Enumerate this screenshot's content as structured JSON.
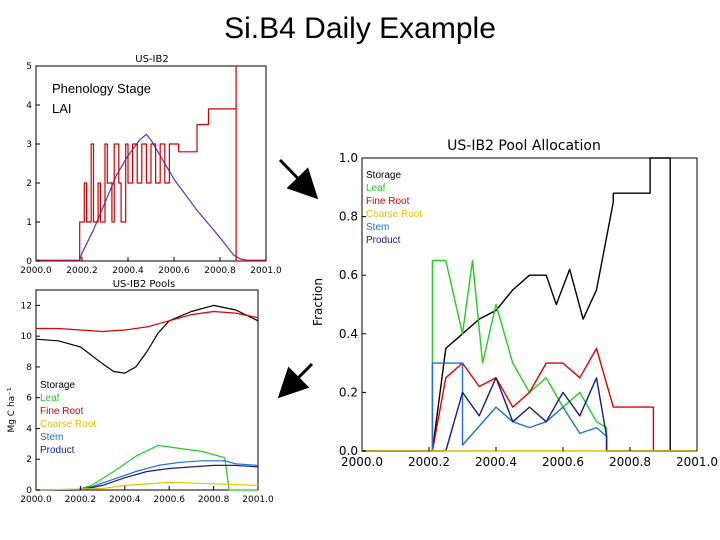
{
  "title": "Si.B4 Daily Example",
  "colors": {
    "storage": "#000000",
    "leaf": "#22cc22",
    "fine_root": "#dd0000",
    "coarse_root": "#e6c200",
    "stem": "#1f6fd1",
    "product": "#1a1a8c",
    "lai": "#5533cc",
    "phenology": "#cc0000",
    "arrow": "#000000"
  },
  "chart_data": [
    {
      "id": "lai",
      "type": "line",
      "title": "US-IB2",
      "xlim": [
        2000.0,
        2001.0
      ],
      "ylim": [
        0,
        5
      ],
      "x_ticks": [
        "2000.0",
        "2000.2",
        "2000.4",
        "2000.6",
        "2000.8",
        "2001.0"
      ],
      "y_ticks": [
        "0",
        "1",
        "2",
        "3",
        "4",
        "5"
      ],
      "legend": [
        "Phenology Stage",
        "LAI"
      ],
      "series": [
        {
          "name": "LAI",
          "color_key": "lai",
          "x": [
            2000.0,
            2000.19,
            2000.2,
            2000.25,
            2000.3,
            2000.35,
            2000.4,
            2000.45,
            2000.48,
            2000.5,
            2000.53,
            2000.6,
            2000.7,
            2000.8,
            2000.86,
            2000.89,
            2000.92,
            2001.0
          ],
          "y": [
            0.02,
            0.02,
            0.2,
            0.8,
            1.5,
            2.2,
            2.7,
            3.1,
            3.25,
            3.1,
            2.8,
            2.1,
            1.3,
            0.6,
            0.15,
            0.05,
            0.02,
            0.02
          ]
        },
        {
          "name": "Phenology Stage",
          "color_key": "phenology",
          "x": [
            2000.0,
            2000.19,
            2000.19,
            2000.21,
            2000.21,
            2000.22,
            2000.22,
            2000.24,
            2000.24,
            2000.25,
            2000.25,
            2000.27,
            2000.27,
            2000.28,
            2000.28,
            2000.3,
            2000.3,
            2000.31,
            2000.31,
            2000.33,
            2000.33,
            2000.34,
            2000.34,
            2000.36,
            2000.36,
            2000.37,
            2000.37,
            2000.39,
            2000.39,
            2000.4,
            2000.4,
            2000.42,
            2000.42,
            2000.44,
            2000.44,
            2000.46,
            2000.46,
            2000.48,
            2000.48,
            2000.5,
            2000.5,
            2000.52,
            2000.52,
            2000.54,
            2000.54,
            2000.56,
            2000.56,
            2000.58,
            2000.58,
            2000.62,
            2000.62,
            2000.7,
            2000.7,
            2000.75,
            2000.75,
            2000.87,
            2000.87,
            2000.87,
            2000.87,
            2001.0
          ],
          "y": [
            0,
            0,
            1,
            1,
            2,
            2,
            1,
            1,
            3,
            3,
            1,
            1,
            2,
            2,
            1,
            1,
            3,
            3,
            2,
            2,
            1,
            1,
            3,
            3,
            2,
            2,
            1,
            1,
            3,
            3,
            2,
            2,
            3,
            3,
            2,
            2,
            3,
            3,
            2,
            2,
            3,
            3,
            2,
            2,
            3,
            3,
            2,
            2,
            3,
            3,
            2.8,
            2.8,
            3.5,
            3.5,
            3.9,
            3.9,
            5,
            5,
            0,
            0
          ]
        }
      ]
    },
    {
      "id": "pools",
      "type": "line",
      "title": "US-IB2 Pools",
      "ylabel": "Mg C ha⁻¹",
      "xlim": [
        2000.0,
        2001.0
      ],
      "ylim": [
        0,
        13
      ],
      "x_ticks": [
        "2000.0",
        "2000.2",
        "2000.4",
        "2000.6",
        "2000.8",
        "2001.0"
      ],
      "y_ticks": [
        "0",
        "2",
        "4",
        "6",
        "8",
        "10",
        "12"
      ],
      "legend": [
        "Storage",
        "Leaf",
        "Fine Root",
        "Coarse Root",
        "Stem",
        "Product"
      ],
      "series": [
        {
          "name": "Storage",
          "color_key": "storage",
          "x": [
            2000.0,
            2000.1,
            2000.2,
            2000.3,
            2000.35,
            2000.4,
            2000.45,
            2000.5,
            2000.55,
            2000.6,
            2000.7,
            2000.8,
            2000.9,
            2001.0
          ],
          "y": [
            9.8,
            9.7,
            9.3,
            8.2,
            7.7,
            7.6,
            8.0,
            9.0,
            10.2,
            11.0,
            11.6,
            12.0,
            11.7,
            11.0
          ]
        },
        {
          "name": "Fine Root",
          "color_key": "fine_root",
          "x": [
            2000.0,
            2000.1,
            2000.2,
            2000.3,
            2000.4,
            2000.5,
            2000.6,
            2000.7,
            2000.8,
            2000.9,
            2001.0
          ],
          "y": [
            10.5,
            10.5,
            10.4,
            10.3,
            10.4,
            10.6,
            11.0,
            11.4,
            11.6,
            11.5,
            11.2
          ]
        },
        {
          "name": "Leaf",
          "color_key": "leaf",
          "x": [
            2000.0,
            2000.18,
            2000.25,
            2000.35,
            2000.45,
            2000.55,
            2000.65,
            2000.75,
            2000.85,
            2000.87,
            2001.0
          ],
          "y": [
            0,
            0,
            0.3,
            1.2,
            2.2,
            2.9,
            2.7,
            2.5,
            2.1,
            0,
            0
          ]
        },
        {
          "name": "Stem",
          "color_key": "stem",
          "x": [
            2000.0,
            2000.18,
            2000.25,
            2000.35,
            2000.45,
            2000.55,
            2000.65,
            2000.75,
            2000.85,
            2000.9,
            2001.0
          ],
          "y": [
            0,
            0,
            0.2,
            0.7,
            1.2,
            1.6,
            1.8,
            1.9,
            1.9,
            1.7,
            1.6
          ]
        },
        {
          "name": "Product",
          "color_key": "product",
          "x": [
            2000.0,
            2000.2,
            2000.3,
            2000.4,
            2000.5,
            2000.6,
            2000.7,
            2000.8,
            2000.9,
            2001.0
          ],
          "y": [
            0,
            0,
            0.3,
            0.8,
            1.2,
            1.4,
            1.5,
            1.6,
            1.6,
            1.5
          ]
        },
        {
          "name": "Coarse Root",
          "color_key": "coarse_root",
          "x": [
            2000.0,
            2000.3,
            2000.4,
            2000.6,
            2000.8,
            2001.0
          ],
          "y": [
            0,
            0.1,
            0.3,
            0.5,
            0.4,
            0.3
          ]
        }
      ]
    },
    {
      "id": "allocation",
      "type": "line",
      "title": "US-IB2 Pool Allocation",
      "ylabel": "Fraction",
      "xlim": [
        2000.0,
        2001.0
      ],
      "ylim": [
        0.0,
        1.0
      ],
      "x_ticks": [
        "2000.0",
        "2000.2",
        "2000.4",
        "2000.6",
        "2000.8",
        "2001.0"
      ],
      "y_ticks": [
        "0.0",
        "0.2",
        "0.4",
        "0.6",
        "0.8",
        "1.0"
      ],
      "legend": [
        "Storage",
        "Leaf",
        "Fine Root",
        "Coarse Root",
        "Stem",
        "Product"
      ],
      "series": [
        {
          "name": "Storage",
          "color_key": "storage",
          "x": [
            2000.0,
            2000.21,
            2000.25,
            2000.3,
            2000.35,
            2000.4,
            2000.45,
            2000.5,
            2000.55,
            2000.58,
            2000.62,
            2000.66,
            2000.7,
            2000.75,
            2000.75,
            2000.86,
            2000.86,
            2000.92,
            2000.92,
            2001.0
          ],
          "y": [
            0.0,
            0.0,
            0.35,
            0.4,
            0.45,
            0.48,
            0.55,
            0.6,
            0.6,
            0.5,
            0.62,
            0.45,
            0.55,
            0.85,
            0.88,
            0.88,
            1.0,
            1.0,
            0.0,
            0.0
          ]
        },
        {
          "name": "Leaf",
          "color_key": "leaf",
          "x": [
            2000.0,
            2000.21,
            2000.21,
            2000.25,
            2000.3,
            2000.33,
            2000.36,
            2000.4,
            2000.45,
            2000.5,
            2000.55,
            2000.6,
            2000.65,
            2000.7,
            2000.73,
            2000.73,
            2001.0
          ],
          "y": [
            0.0,
            0.0,
            0.65,
            0.65,
            0.4,
            0.65,
            0.3,
            0.5,
            0.3,
            0.2,
            0.25,
            0.15,
            0.2,
            0.1,
            0.08,
            0.0,
            0.0
          ]
        },
        {
          "name": "Fine Root",
          "color_key": "fine_root",
          "x": [
            2000.0,
            2000.21,
            2000.25,
            2000.3,
            2000.35,
            2000.4,
            2000.45,
            2000.5,
            2000.55,
            2000.6,
            2000.65,
            2000.7,
            2000.75,
            2000.75,
            2000.87,
            2000.87,
            2001.0
          ],
          "y": [
            0.0,
            0.0,
            0.25,
            0.3,
            0.22,
            0.25,
            0.15,
            0.2,
            0.3,
            0.3,
            0.25,
            0.35,
            0.15,
            0.15,
            0.15,
            0.0,
            0.0
          ]
        },
        {
          "name": "Stem",
          "color_key": "stem",
          "x": [
            2000.0,
            2000.21,
            2000.21,
            2000.3,
            2000.3,
            2000.4,
            2000.45,
            2000.5,
            2000.55,
            2000.6,
            2000.65,
            2000.7,
            2000.73,
            2000.73,
            2001.0
          ],
          "y": [
            0.0,
            0.0,
            0.3,
            0.3,
            0.02,
            0.15,
            0.1,
            0.08,
            0.1,
            0.15,
            0.06,
            0.08,
            0.05,
            0.0,
            0.0
          ]
        },
        {
          "name": "Product",
          "color_key": "product",
          "x": [
            2000.0,
            2000.25,
            2000.3,
            2000.35,
            2000.4,
            2000.45,
            2000.5,
            2000.55,
            2000.6,
            2000.65,
            2000.7,
            2000.73,
            2000.73,
            2001.0
          ],
          "y": [
            0.0,
            0.0,
            0.2,
            0.12,
            0.25,
            0.1,
            0.15,
            0.1,
            0.2,
            0.12,
            0.25,
            0.05,
            0.0,
            0.0
          ]
        },
        {
          "name": "Coarse Root",
          "color_key": "coarse_root",
          "x": [
            2000.0,
            2001.0
          ],
          "y": [
            0.0,
            0.0
          ]
        }
      ]
    }
  ]
}
